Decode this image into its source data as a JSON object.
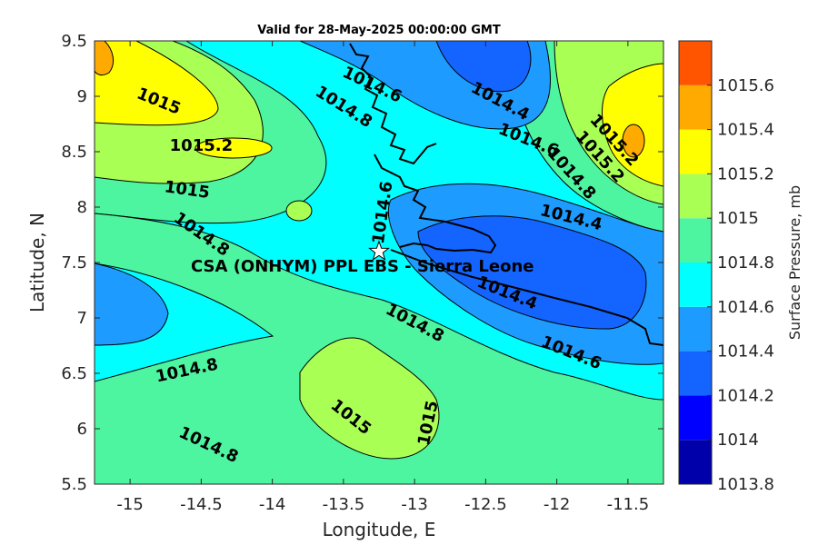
{
  "title": "Valid for 28-May-2025 00:00:00 GMT",
  "xlabel": "Longitude, E",
  "ylabel": "Latitude, N",
  "colorbar_label": "Surface Pressure, mb",
  "site_label": "CSA (ONHYM) PPL EBS  - Sierra Leone",
  "map_data": {
    "type": "contour-map",
    "lon_range": [
      -15.25,
      -11.25
    ],
    "lat_range": [
      5.5,
      9.5
    ],
    "x_ticks": [
      -15,
      -14.5,
      -14,
      -13.5,
      -13,
      -12.5,
      -12,
      -11.5
    ],
    "x_tick_labels": [
      "-15",
      "-14.5",
      "-14",
      "-13.5",
      "-13",
      "-12.5",
      "-12",
      "-11.5"
    ],
    "y_ticks": [
      5.5,
      6,
      6.5,
      7,
      7.5,
      8,
      8.5,
      9,
      9.5
    ],
    "y_tick_labels": [
      "5.5",
      "6",
      "6.5",
      "7",
      "7.5",
      "8",
      "8.5",
      "9",
      "9.5"
    ],
    "site": {
      "lon": -13.25,
      "lat": 7.6,
      "marker": "white-star"
    },
    "contour_labels": [
      {
        "text": "1015",
        "lon": -14.8,
        "lat": 8.95,
        "rotation": 22
      },
      {
        "text": "1014.6",
        "lon": -13.3,
        "lat": 9.1,
        "rotation": 25
      },
      {
        "text": "1014.8",
        "lon": -13.5,
        "lat": 8.9,
        "rotation": 32
      },
      {
        "text": "1015.2",
        "lon": -14.5,
        "lat": 8.55,
        "rotation": 0
      },
      {
        "text": "1015",
        "lon": -14.6,
        "lat": 8.15,
        "rotation": 8
      },
      {
        "text": "1014.4",
        "lon": -12.4,
        "lat": 8.95,
        "rotation": 28
      },
      {
        "text": "1014.6",
        "lon": -12.2,
        "lat": 8.6,
        "rotation": 22
      },
      {
        "text": "1015.2",
        "lon": -11.6,
        "lat": 8.6,
        "rotation": 48
      },
      {
        "text": "1015.2",
        "lon": -11.7,
        "lat": 8.45,
        "rotation": 48
      },
      {
        "text": "1014.8",
        "lon": -11.9,
        "lat": 8.3,
        "rotation": 48
      },
      {
        "text": "1014.6",
        "lon": -13.22,
        "lat": 7.95,
        "rotation": -82
      },
      {
        "text": "1014.4",
        "lon": -11.9,
        "lat": 7.9,
        "rotation": 14
      },
      {
        "text": "1014.8",
        "lon": -14.5,
        "lat": 7.75,
        "rotation": 35
      },
      {
        "text": "1014.4",
        "lon": -12.35,
        "lat": 7.22,
        "rotation": 22
      },
      {
        "text": "1014.8",
        "lon": -13.0,
        "lat": 6.95,
        "rotation": 28
      },
      {
        "text": "1014.6",
        "lon": -11.9,
        "lat": 6.68,
        "rotation": 22
      },
      {
        "text": "1014.8",
        "lon": -14.6,
        "lat": 6.52,
        "rotation": -12
      },
      {
        "text": "1015",
        "lon": -13.45,
        "lat": 6.1,
        "rotation": 38
      },
      {
        "text": "1015",
        "lon": -12.9,
        "lat": 6.05,
        "rotation": -78
      },
      {
        "text": "1014.8",
        "lon": -14.45,
        "lat": 5.85,
        "rotation": 25
      }
    ]
  },
  "colorbar": {
    "tick_labels": [
      "1013.8",
      "1014",
      "1014.2",
      "1014.4",
      "1014.6",
      "1014.8",
      "1015",
      "1015.2",
      "1015.4",
      "1015.6"
    ],
    "colors": [
      "#0000aa",
      "#0000ff",
      "#1464ff",
      "#1e9bff",
      "#00ffff",
      "#4ef5a0",
      "#aaff55",
      "#ffff00",
      "#ffaa00",
      "#ff5500"
    ]
  }
}
